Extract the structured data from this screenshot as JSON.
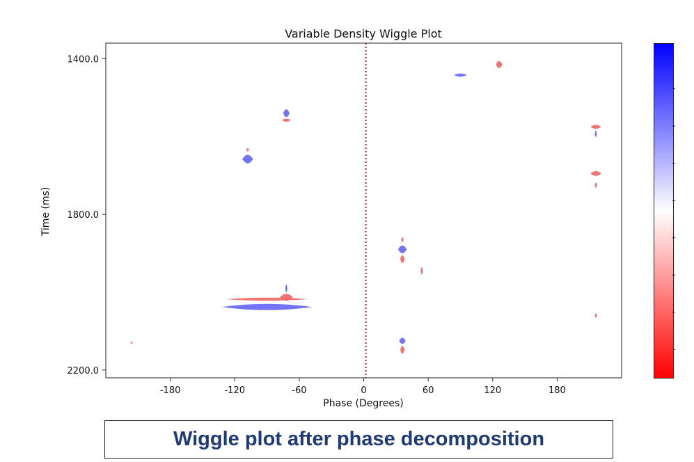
{
  "caption": "Wiggle plot after phase decomposition",
  "chart_data": {
    "type": "wiggle",
    "title": "Variable Density Wiggle Plot",
    "xlabel": "Phase (Degrees)",
    "ylabel": "Time (ms)",
    "xlim": [
      -240,
      240
    ],
    "ylim": [
      2220,
      1360
    ],
    "xticks": [
      -180,
      -120,
      -60,
      0,
      60,
      120,
      180
    ],
    "xtick_labels": [
      "-180",
      "-120",
      "-60",
      "0",
      "60",
      "120",
      "180"
    ],
    "yticks": [
      1400,
      1800,
      2200
    ],
    "ytick_labels": [
      "1400.0",
      "1800.0",
      "2200.0"
    ],
    "reference_line": {
      "x": 2,
      "style": "dotted",
      "color": "#b22222"
    },
    "colormap": {
      "name": "bwr",
      "top_color": "#0000ff",
      "mid_color": "#ffffff",
      "bottom_color": "#ff0000"
    },
    "events": [
      {
        "phase": 90,
        "time": 1442,
        "half_width": 6,
        "half_height": 4,
        "polarity": "positive"
      },
      {
        "phase": 126,
        "time": 1415,
        "half_width": 3,
        "half_height": 9,
        "polarity": "negative"
      },
      {
        "phase": -72,
        "time": 1540,
        "half_width": 3,
        "half_height": 10,
        "polarity": "positive"
      },
      {
        "phase": -72,
        "time": 1558,
        "half_width": 4,
        "half_height": 4,
        "polarity": "negative"
      },
      {
        "phase": -108,
        "time": 1658,
        "half_width": 5,
        "half_height": 11,
        "polarity": "positive"
      },
      {
        "phase": -108,
        "time": 1634,
        "half_width": 1,
        "half_height": 5,
        "polarity": "negative"
      },
      {
        "phase": 216,
        "time": 1575,
        "half_width": 5,
        "half_height": 5,
        "polarity": "negative"
      },
      {
        "phase": 216,
        "time": 1593,
        "half_width": 1,
        "half_height": 8,
        "polarity": "positive"
      },
      {
        "phase": 216,
        "time": 1695,
        "half_width": 5,
        "half_height": 6,
        "polarity": "negative"
      },
      {
        "phase": 216,
        "time": 1725,
        "half_width": 1,
        "half_height": 7,
        "polarity": "negative"
      },
      {
        "phase": 36,
        "time": 1890,
        "half_width": 4,
        "half_height": 10,
        "polarity": "positive"
      },
      {
        "phase": 36,
        "time": 1865,
        "half_width": 1,
        "half_height": 7,
        "polarity": "negative"
      },
      {
        "phase": 36,
        "time": 1915,
        "half_width": 2,
        "half_height": 10,
        "polarity": "negative"
      },
      {
        "phase": 54,
        "time": 1945,
        "half_width": 1,
        "half_height": 10,
        "polarity": "negative"
      },
      {
        "phase": -72,
        "time": 1990,
        "half_width": 1,
        "half_height": 10,
        "polarity": "positive"
      },
      {
        "phase": -90,
        "time": 2018,
        "half_width": 38,
        "half_height": 4,
        "polarity": "negative"
      },
      {
        "phase": -90,
        "time": 2038,
        "half_width": 42,
        "half_height": 8,
        "polarity": "positive"
      },
      {
        "phase": -72,
        "time": 2013,
        "half_width": 6,
        "half_height": 9,
        "polarity": "negative"
      },
      {
        "phase": 216,
        "time": 2060,
        "half_width": 1,
        "half_height": 6,
        "polarity": "negative"
      },
      {
        "phase": 36,
        "time": 2125,
        "half_width": 3,
        "half_height": 8,
        "polarity": "positive"
      },
      {
        "phase": 36,
        "time": 2148,
        "half_width": 2,
        "half_height": 10,
        "polarity": "negative"
      },
      {
        "phase": -216,
        "time": 2130,
        "half_width": 1,
        "half_height": 3,
        "polarity": "negative"
      }
    ]
  }
}
